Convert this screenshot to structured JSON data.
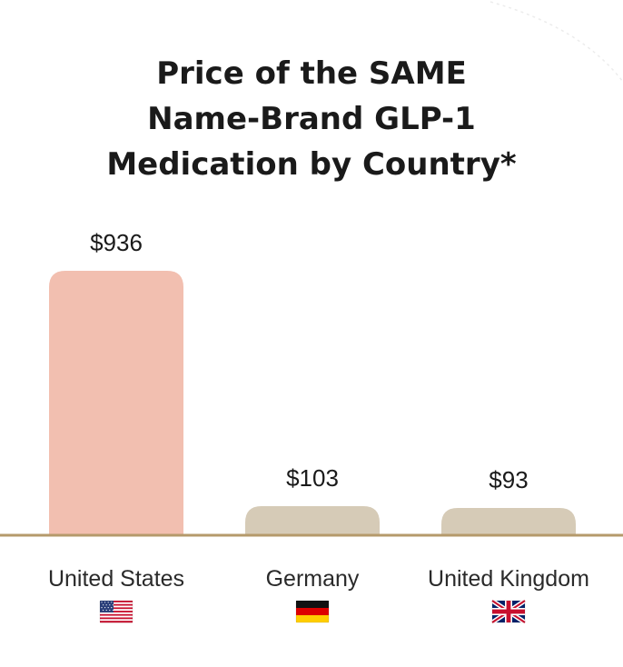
{
  "title_lines": [
    "Price of the SAME",
    "Name-Brand GLP-1",
    "Medication by Country*"
  ],
  "colors": {
    "highlight_bar": "#f2bfb0",
    "bar": "#d6cbb7",
    "baseline": "#b59a6b"
  },
  "chart_data": {
    "type": "bar",
    "title": "Price of the SAME Name-Brand GLP-1 Medication by Country*",
    "categories": [
      "United States",
      "Germany",
      "United Kingdom"
    ],
    "values": [
      936,
      103,
      93
    ],
    "value_labels": [
      "$936",
      "$103",
      "$93"
    ],
    "flags": [
      "us-flag-icon",
      "germany-flag-icon",
      "uk-flag-icon"
    ],
    "highlight_index": 0,
    "xlabel": "",
    "ylabel": "",
    "ylim": [
      0,
      936
    ],
    "grid": false
  }
}
